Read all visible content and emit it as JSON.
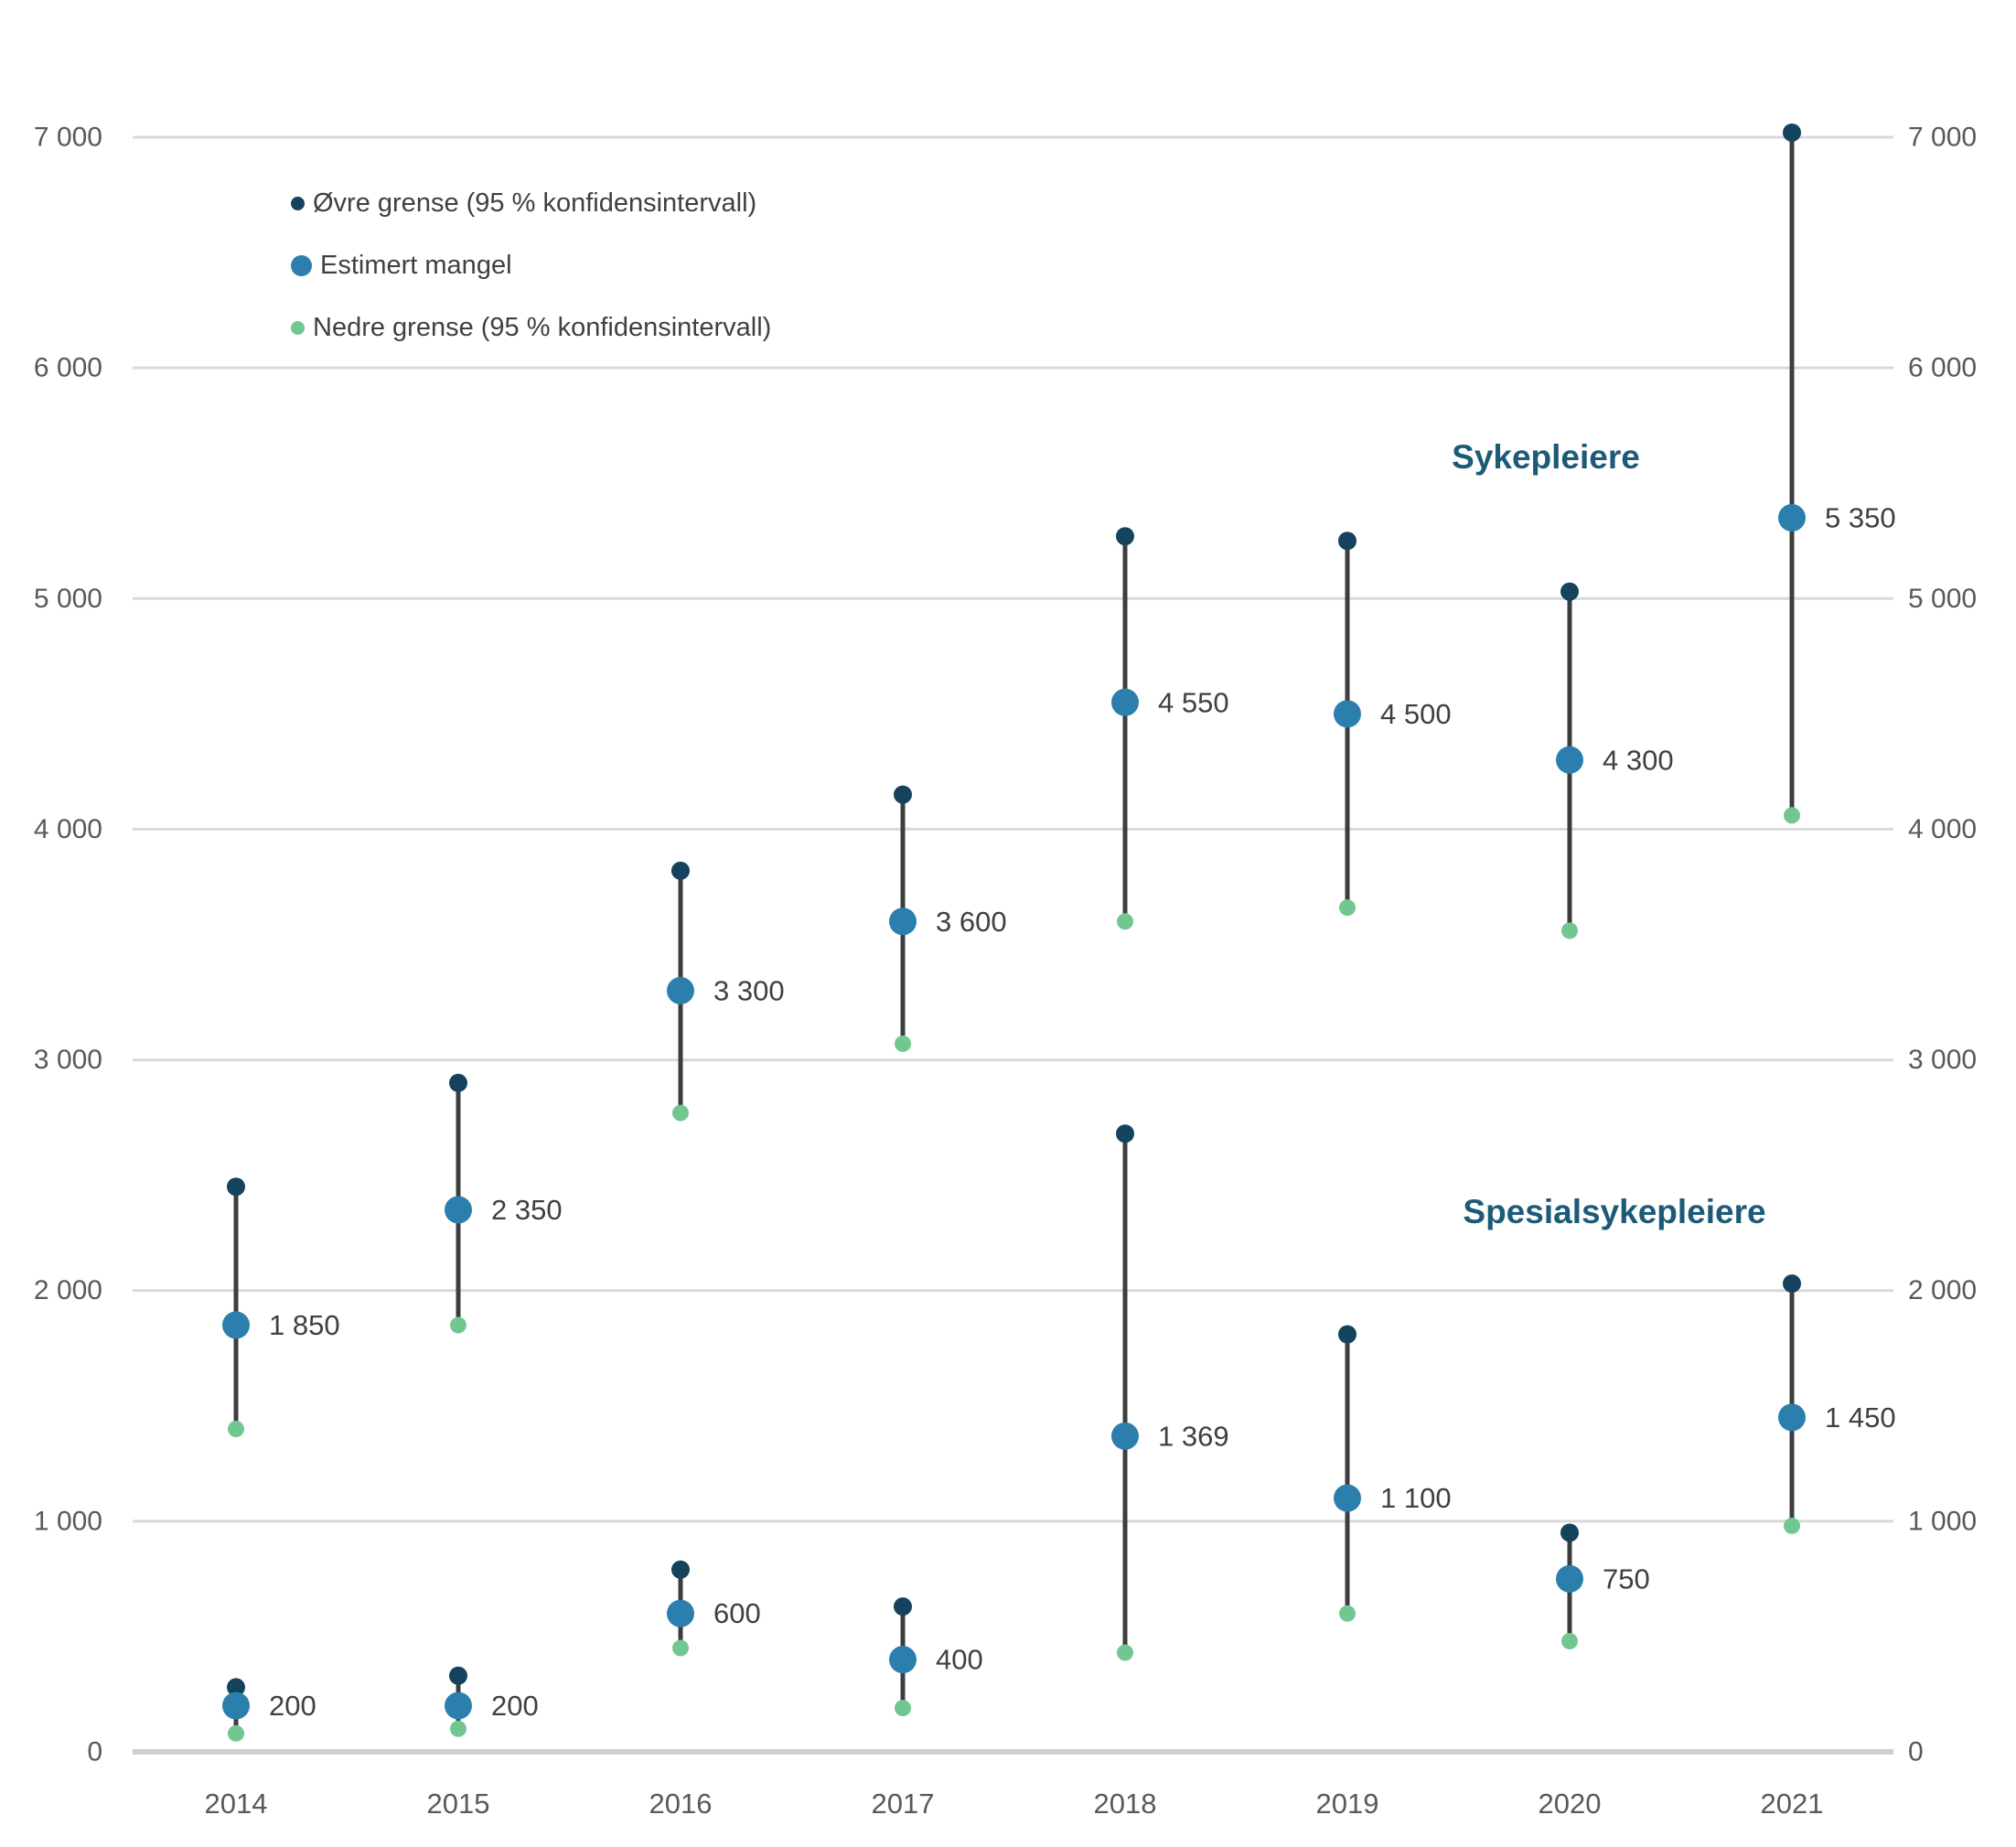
{
  "chart_data": {
    "type": "scatter",
    "subtype": "dumbbell-confidence-interval",
    "description": "Estimated shortage of nurses with 95 % confidence intervals, by year",
    "categories": [
      "2014",
      "2015",
      "2016",
      "2017",
      "2018",
      "2019",
      "2020",
      "2021"
    ],
    "y_axis": {
      "min": 0,
      "max": 7000,
      "step": 1000,
      "tick_labels": [
        "0",
        "1 000",
        "2 000",
        "3 000",
        "4 000",
        "5 000",
        "6 000",
        "7 000"
      ],
      "sides": [
        "left",
        "right"
      ],
      "grid": true
    },
    "legend": {
      "position": "top-left",
      "items": [
        {
          "label": "Øvre grense (95 % konfidensintervall)",
          "color": "#15425d",
          "size": "small"
        },
        {
          "label": "Estimert mangel",
          "color": "#2c7fac",
          "size": "large"
        },
        {
          "label": "Nedre grense (95 % konfidensintervall)",
          "color": "#72c791",
          "size": "small"
        }
      ]
    },
    "annotations": [
      {
        "text": "Sykepleiere"
      },
      {
        "text": "Spesialsykepleiere"
      }
    ],
    "series": [
      {
        "name": "Sykepleiere",
        "points": [
          {
            "year": "2014",
            "estimate": 1850,
            "estimate_label": "1 850",
            "upper": 2450,
            "lower": 1400
          },
          {
            "year": "2015",
            "estimate": 2350,
            "estimate_label": "2 350",
            "upper": 2900,
            "lower": 1850
          },
          {
            "year": "2016",
            "estimate": 3300,
            "estimate_label": "3 300",
            "upper": 3820,
            "lower": 2770
          },
          {
            "year": "2017",
            "estimate": 3600,
            "estimate_label": "3 600",
            "upper": 4150,
            "lower": 3070
          },
          {
            "year": "2018",
            "estimate": 4550,
            "estimate_label": "4 550",
            "upper": 5270,
            "lower": 3600
          },
          {
            "year": "2019",
            "estimate": 4500,
            "estimate_label": "4 500",
            "upper": 5250,
            "lower": 3660
          },
          {
            "year": "2020",
            "estimate": 4300,
            "estimate_label": "4 300",
            "upper": 5030,
            "lower": 3560
          },
          {
            "year": "2021",
            "estimate": 5350,
            "estimate_label": "5 350",
            "upper": 7020,
            "lower": 4060
          }
        ]
      },
      {
        "name": "Spesialsykepleiere",
        "points": [
          {
            "year": "2014",
            "estimate": 200,
            "estimate_label": "200",
            "upper": 280,
            "lower": 80
          },
          {
            "year": "2015",
            "estimate": 200,
            "estimate_label": "200",
            "upper": 330,
            "lower": 100
          },
          {
            "year": "2016",
            "estimate": 600,
            "estimate_label": "600",
            "upper": 790,
            "lower": 450
          },
          {
            "year": "2017",
            "estimate": 400,
            "estimate_label": "400",
            "upper": 630,
            "lower": 190
          },
          {
            "year": "2018",
            "estimate": 1369,
            "estimate_label": "1 369",
            "upper": 2680,
            "lower": 430
          },
          {
            "year": "2019",
            "estimate": 1100,
            "estimate_label": "1 100",
            "upper": 1810,
            "lower": 600
          },
          {
            "year": "2020",
            "estimate": 750,
            "estimate_label": "750",
            "upper": 950,
            "lower": 480
          },
          {
            "year": "2021",
            "estimate": 1450,
            "estimate_label": "1 450",
            "upper": 2030,
            "lower": 980
          }
        ]
      }
    ],
    "colors": {
      "upper_marker": "#15425d",
      "estimate_marker": "#2c7fac",
      "lower_marker": "#72c791",
      "connector_line": "#3d3d3d",
      "gridline": "#d9d9d9",
      "baseline": "#cfcfcf",
      "tick_label": "#595959",
      "data_label": "#404040",
      "series_title": "#1d5a78"
    }
  }
}
